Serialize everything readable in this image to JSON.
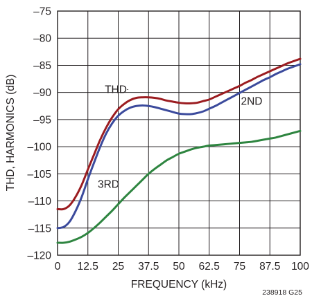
{
  "chart_data": {
    "type": "line",
    "xlabel": "FREQUENCY (kHz)",
    "ylabel": "THD, HARMONICS (dB)",
    "xlim": [
      0,
      100
    ],
    "ylim": [
      -120,
      -75
    ],
    "xticks": [
      0,
      12.5,
      25,
      37.5,
      50,
      62.5,
      75,
      87.5,
      100
    ],
    "xtick_labels": [
      "0",
      "12.5",
      "25",
      "37.5",
      "50",
      "62.5",
      "75",
      "87.5",
      "100"
    ],
    "yticks": [
      -75,
      -80,
      -85,
      -90,
      -95,
      -100,
      -105,
      -110,
      -115,
      -120
    ],
    "ytick_labels": [
      "–75",
      "–80",
      "–85",
      "–90",
      "–95",
      "–100",
      "–105",
      "–110",
      "–115",
      "–120"
    ],
    "grid": true,
    "figure_id": "238918 G25",
    "colors": {
      "grid": "#231f20",
      "thd": "#9b1c20",
      "second": "#3b4a9c",
      "third": "#2e8540"
    },
    "series": [
      {
        "name": "THD",
        "color": "#9b1c20",
        "x": [
          0,
          2.5,
          5,
          7.5,
          10,
          12.5,
          15,
          17.5,
          20,
          22.5,
          25,
          27.5,
          30,
          32.5,
          35,
          37.5,
          40,
          42.5,
          45,
          47.5,
          50,
          52.5,
          55,
          57.5,
          60,
          62.5,
          65,
          67.5,
          70,
          72.5,
          75,
          77.5,
          80,
          82.5,
          85,
          87.5,
          90,
          92.5,
          95,
          97.5,
          100
        ],
        "y": [
          -111.5,
          -111.5,
          -110.8,
          -109.2,
          -107.0,
          -104.2,
          -101.5,
          -98.8,
          -96.5,
          -94.6,
          -93.1,
          -92.1,
          -91.4,
          -91.0,
          -90.9,
          -90.9,
          -91.0,
          -91.2,
          -91.5,
          -91.7,
          -91.9,
          -92.0,
          -92.0,
          -91.9,
          -91.6,
          -91.3,
          -90.8,
          -90.3,
          -89.8,
          -89.3,
          -88.8,
          -88.2,
          -87.7,
          -87.1,
          -86.6,
          -86.1,
          -85.6,
          -85.1,
          -84.6,
          -84.2,
          -83.8
        ]
      },
      {
        "name": "2ND",
        "color": "#3b4a9c",
        "x": [
          0,
          2.5,
          5,
          7.5,
          10,
          12.5,
          15,
          17.5,
          20,
          22.5,
          25,
          27.5,
          30,
          32.5,
          35,
          37.5,
          40,
          42.5,
          45,
          47.5,
          50,
          52.5,
          55,
          57.5,
          60,
          62.5,
          65,
          67.5,
          70,
          72.5,
          75,
          77.5,
          80,
          82.5,
          85,
          87.5,
          90,
          92.5,
          95,
          97.5,
          100
        ],
        "y": [
          -115.0,
          -114.8,
          -113.8,
          -111.8,
          -109.2,
          -106.0,
          -103.0,
          -100.1,
          -97.6,
          -95.7,
          -94.3,
          -93.4,
          -92.8,
          -92.5,
          -92.4,
          -92.5,
          -92.7,
          -93.0,
          -93.3,
          -93.6,
          -93.9,
          -94.0,
          -94.0,
          -93.8,
          -93.5,
          -93.0,
          -92.5,
          -91.9,
          -91.3,
          -90.7,
          -90.1,
          -89.5,
          -88.9,
          -88.3,
          -87.7,
          -87.2,
          -86.6,
          -86.1,
          -85.6,
          -85.2,
          -84.8
        ]
      },
      {
        "name": "3RD",
        "color": "#2e8540",
        "x": [
          0,
          2.5,
          5,
          7.5,
          10,
          12.5,
          15,
          17.5,
          20,
          22.5,
          25,
          27.5,
          30,
          32.5,
          35,
          37.5,
          40,
          42.5,
          45,
          47.5,
          50,
          52.5,
          55,
          57.5,
          60,
          62.5,
          65,
          67.5,
          70,
          72.5,
          75,
          77.5,
          80,
          82.5,
          85,
          87.5,
          90,
          92.5,
          95,
          97.5,
          100
        ],
        "y": [
          -117.7,
          -117.7,
          -117.5,
          -117.1,
          -116.6,
          -115.9,
          -115.0,
          -114.0,
          -112.9,
          -111.8,
          -110.6,
          -109.4,
          -108.3,
          -107.2,
          -106.1,
          -105.0,
          -104.1,
          -103.3,
          -102.5,
          -101.9,
          -101.3,
          -100.9,
          -100.5,
          -100.2,
          -100.0,
          -99.8,
          -99.7,
          -99.6,
          -99.5,
          -99.4,
          -99.3,
          -99.2,
          -99.1,
          -98.9,
          -98.7,
          -98.5,
          -98.3,
          -98.0,
          -97.7,
          -97.4,
          -97.1
        ]
      }
    ],
    "annotations": [
      {
        "text": "THD",
        "series": "THD",
        "x": 24,
        "y": -90.1,
        "leader_x_end": 28.7
      },
      {
        "text": "2ND",
        "series": "2ND",
        "x": 80,
        "y": -92.3
      },
      {
        "text": "3RD",
        "series": "3RD",
        "x": 21,
        "y": -107.6
      }
    ]
  }
}
